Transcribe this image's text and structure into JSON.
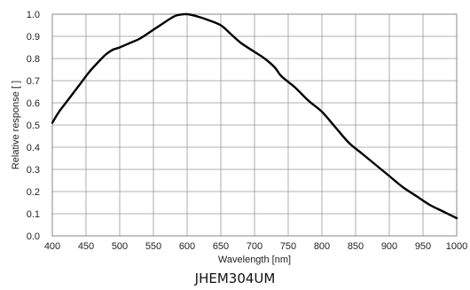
{
  "caption": "JHEM304UM",
  "chart_data": {
    "type": "line",
    "xlabel": "Wavelength [nm]",
    "ylabel": "Relative response [ ]",
    "xlim": [
      400,
      1000
    ],
    "ylim": [
      0,
      1.0
    ],
    "x_ticks": [
      400,
      450,
      500,
      550,
      600,
      650,
      700,
      750,
      800,
      850,
      900,
      950,
      1000
    ],
    "y_ticks": [
      "0.0",
      "0.1",
      "0.2",
      "0.3",
      "0.4",
      "0.5",
      "0.6",
      "0.7",
      "0.8",
      "0.9",
      "1.0"
    ],
    "grid": true,
    "series": [
      {
        "x": [
          400,
          410,
          425,
          440,
          455,
          470,
          480,
          490,
          500,
          515,
          530,
          550,
          565,
          575,
          585,
          600,
          615,
          630,
          650,
          665,
          680,
          700,
          715,
          730,
          740,
          760,
          780,
          800,
          820,
          840,
          860,
          880,
          900,
          920,
          940,
          960,
          980,
          1000
        ],
        "y": [
          0.51,
          0.56,
          0.62,
          0.68,
          0.74,
          0.79,
          0.82,
          0.84,
          0.85,
          0.87,
          0.89,
          0.93,
          0.96,
          0.98,
          0.995,
          1.0,
          0.99,
          0.975,
          0.95,
          0.91,
          0.87,
          0.83,
          0.8,
          0.76,
          0.72,
          0.67,
          0.61,
          0.56,
          0.49,
          0.42,
          0.37,
          0.32,
          0.27,
          0.22,
          0.18,
          0.14,
          0.11,
          0.08
        ]
      }
    ],
    "line_color": "#000000",
    "grid_color": "#999999"
  }
}
